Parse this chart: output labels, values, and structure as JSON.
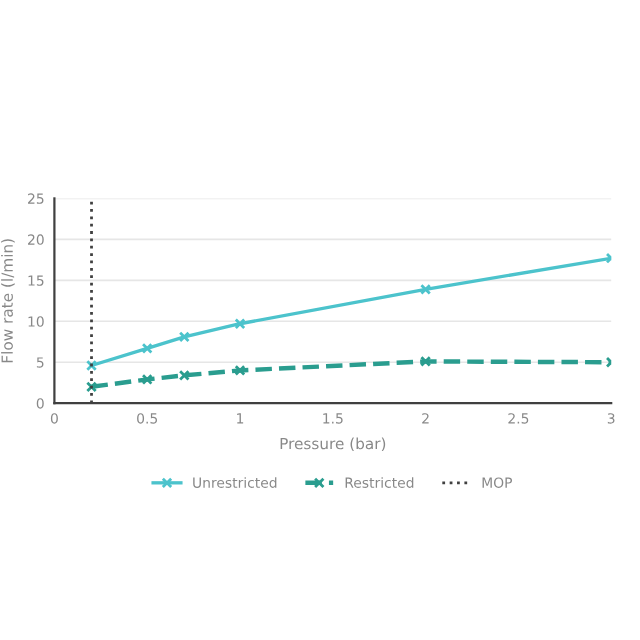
{
  "chart_data": {
    "type": "line",
    "xlabel": "Pressure (bar)",
    "ylabel": "Flow rate (l/min)",
    "xlim": [
      0,
      3
    ],
    "xticks": [
      0,
      0.5,
      1,
      1.5,
      2,
      2.5,
      3
    ],
    "ylim": [
      0,
      25
    ],
    "yticks": [
      0,
      5,
      10,
      15,
      20,
      25
    ],
    "grid": "y",
    "legend": "bottom",
    "marker": "cross",
    "series": [
      {
        "name": "Unrestricted",
        "color": "#4cc3cc",
        "line_style": "solid",
        "x": [
          0.2,
          0.5,
          0.7,
          1,
          2,
          3
        ],
        "values": [
          4.6,
          6.7,
          8.1,
          9.7,
          13.9,
          17.7
        ]
      },
      {
        "name": "Restricted",
        "color": "#2a9d8f",
        "line_style": "dashed",
        "x": [
          0.2,
          0.5,
          0.7,
          1,
          2,
          3
        ],
        "values": [
          2.0,
          2.9,
          3.4,
          4.0,
          5.1,
          5.0
        ]
      }
    ],
    "ref_lines": [
      {
        "axis": "x",
        "value": 0.2,
        "label": "MOP",
        "color": "#404040",
        "line_style": "dotted"
      }
    ]
  }
}
